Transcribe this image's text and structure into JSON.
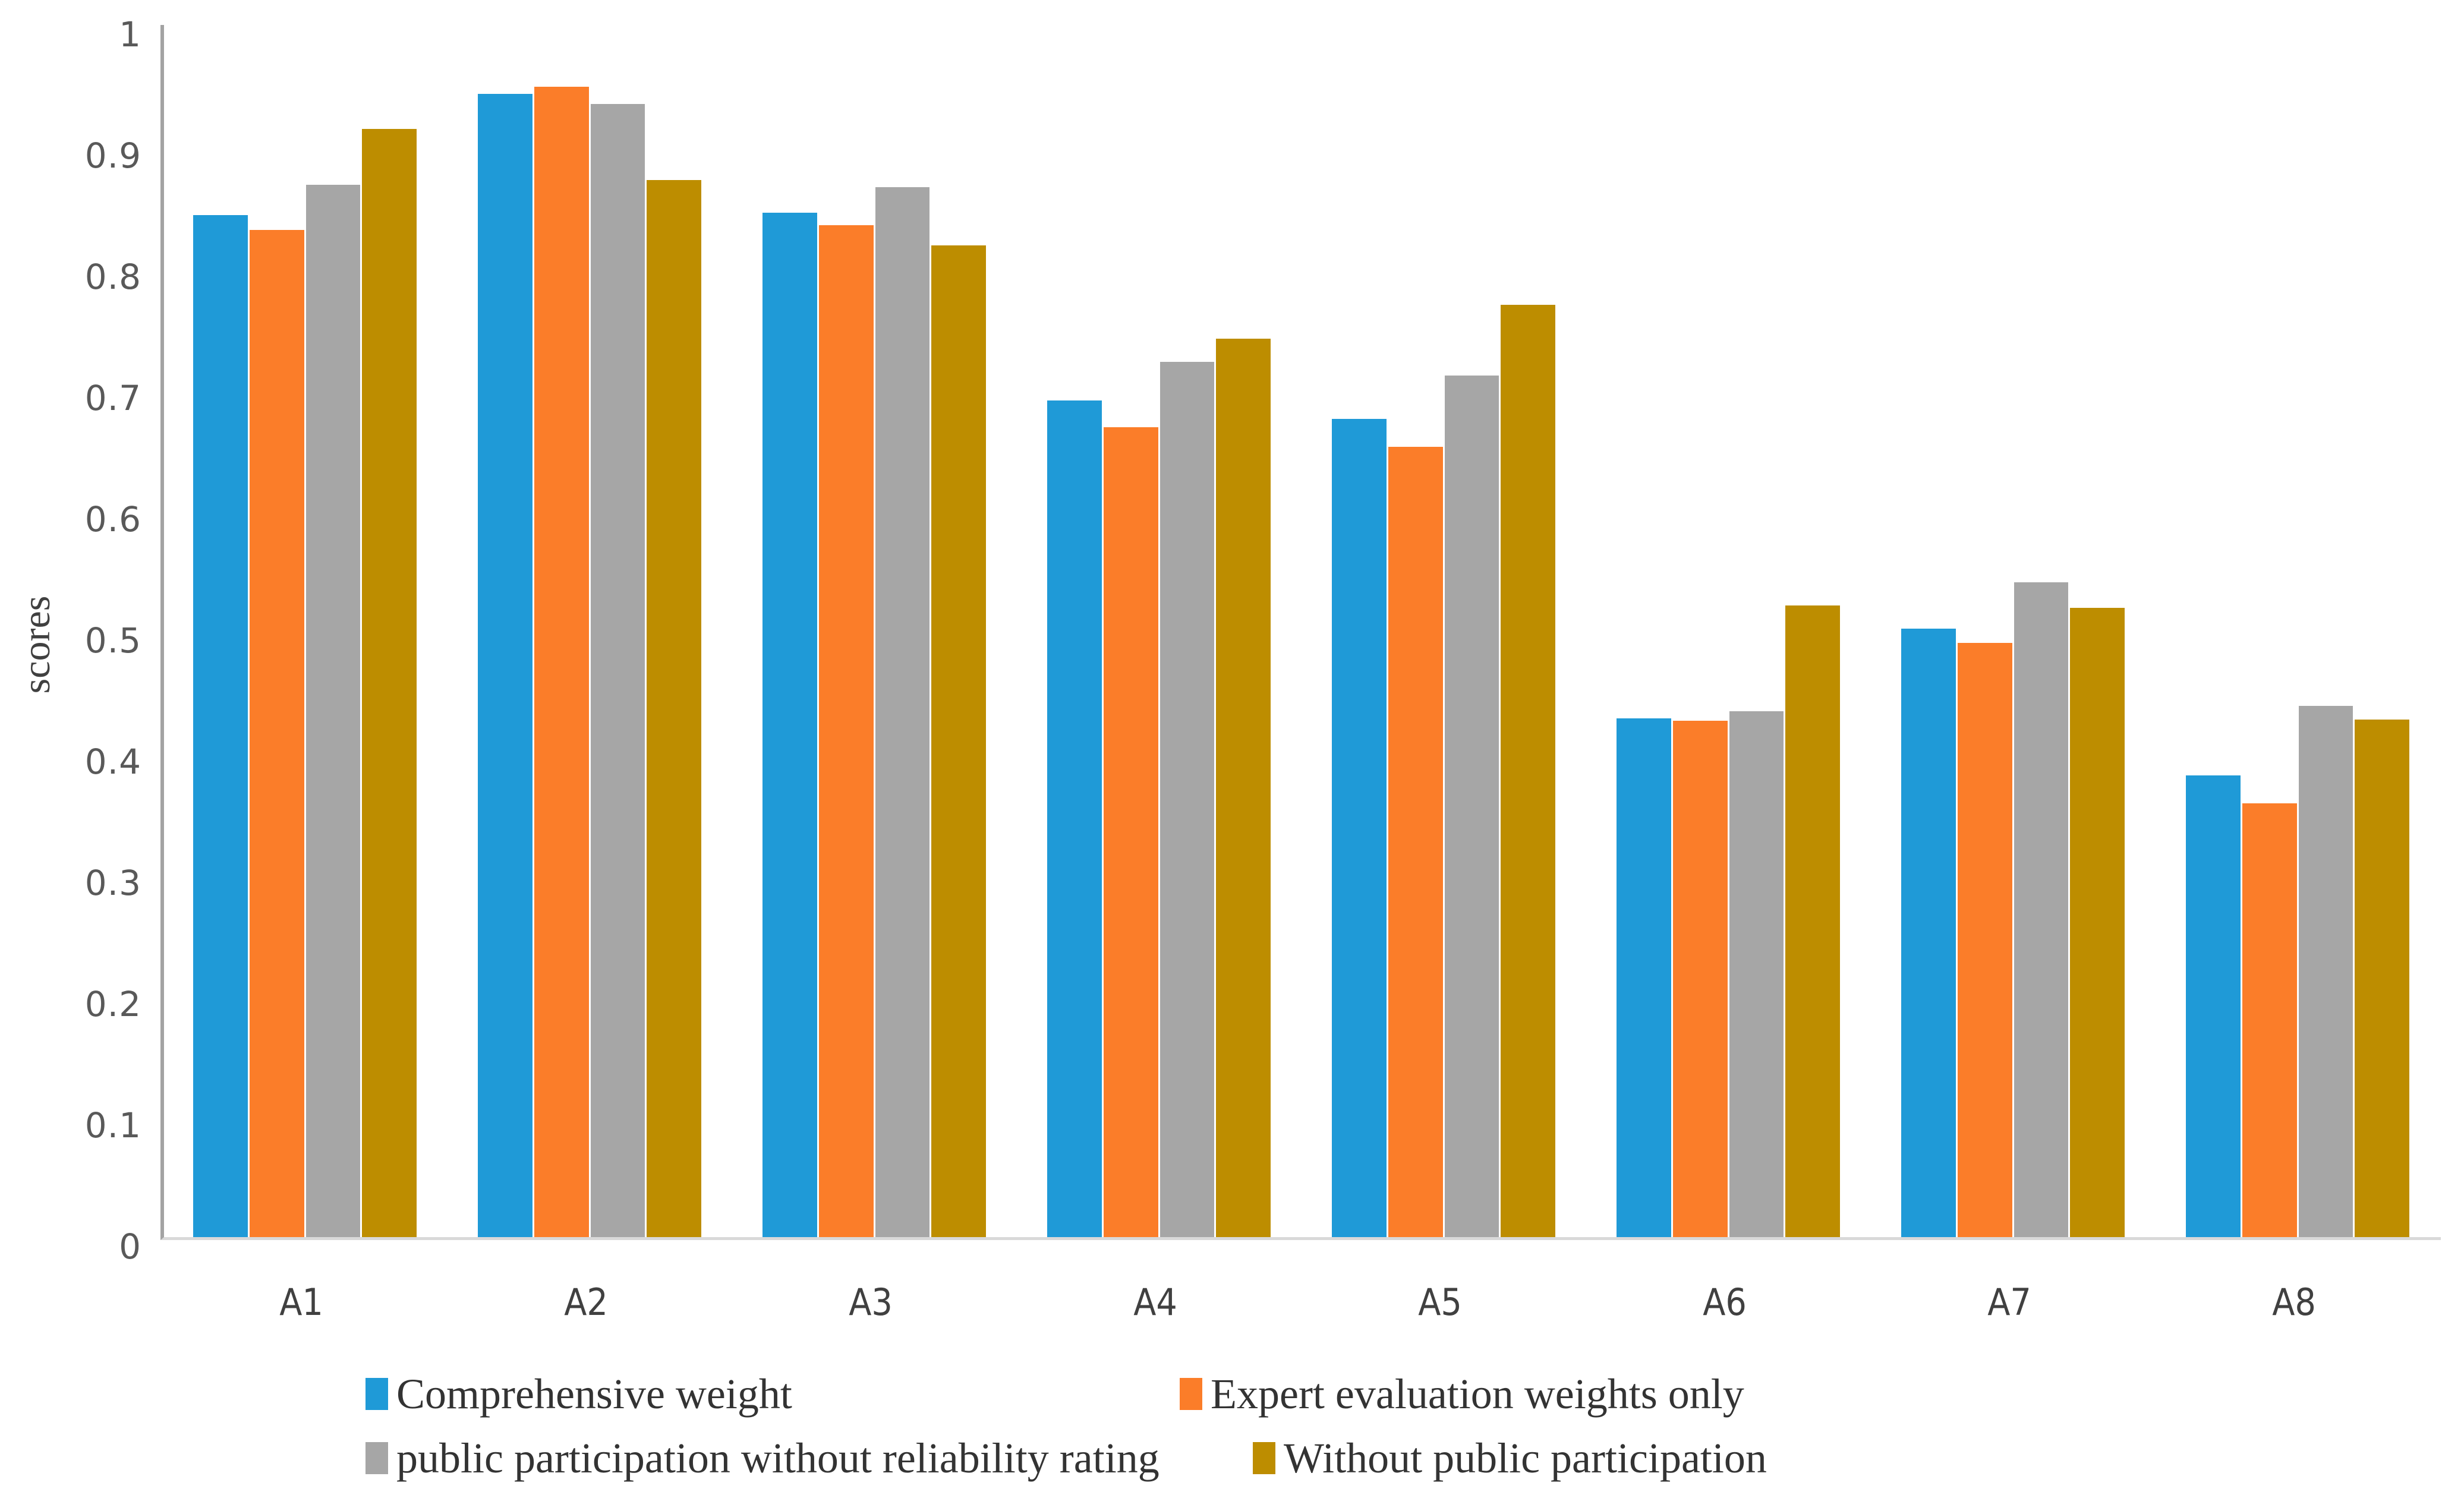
{
  "figure": {
    "background": "#ffffff",
    "axis_spine_color": "#A3A3A3",
    "baseline_color": "#D9D9D9",
    "tick_text_color": "#595959",
    "category_text_color": "#404040"
  },
  "chart_data": {
    "type": "bar",
    "title": "",
    "xlabel": "",
    "ylabel": "scores",
    "ylim": [
      0,
      1
    ],
    "y_ticks": [
      0,
      0.1,
      0.2,
      0.3,
      0.4,
      0.5,
      0.6,
      0.7,
      0.8,
      0.9,
      1
    ],
    "grid": false,
    "legend_position": "bottom",
    "categories": [
      "A1",
      "A2",
      "A3",
      "A4",
      "A5",
      "A6",
      "A7",
      "A8"
    ],
    "series": [
      {
        "name": "Comprehensive weight",
        "color": "#1F9AD7",
        "values": [
          0.843,
          0.943,
          0.845,
          0.69,
          0.675,
          0.428,
          0.502,
          0.381
        ]
      },
      {
        "name": "Expert evaluation weights only",
        "color": "#FB7D29",
        "values": [
          0.831,
          0.949,
          0.835,
          0.668,
          0.652,
          0.426,
          0.49,
          0.358
        ]
      },
      {
        "name": "public participation without reliability rating",
        "color": "#A6A6A6",
        "values": [
          0.868,
          0.935,
          0.866,
          0.722,
          0.711,
          0.434,
          0.54,
          0.438
        ]
      },
      {
        "name": "Without public participation",
        "color": "#BD8D00",
        "values": [
          0.914,
          0.872,
          0.818,
          0.741,
          0.769,
          0.521,
          0.519,
          0.427
        ]
      }
    ]
  }
}
